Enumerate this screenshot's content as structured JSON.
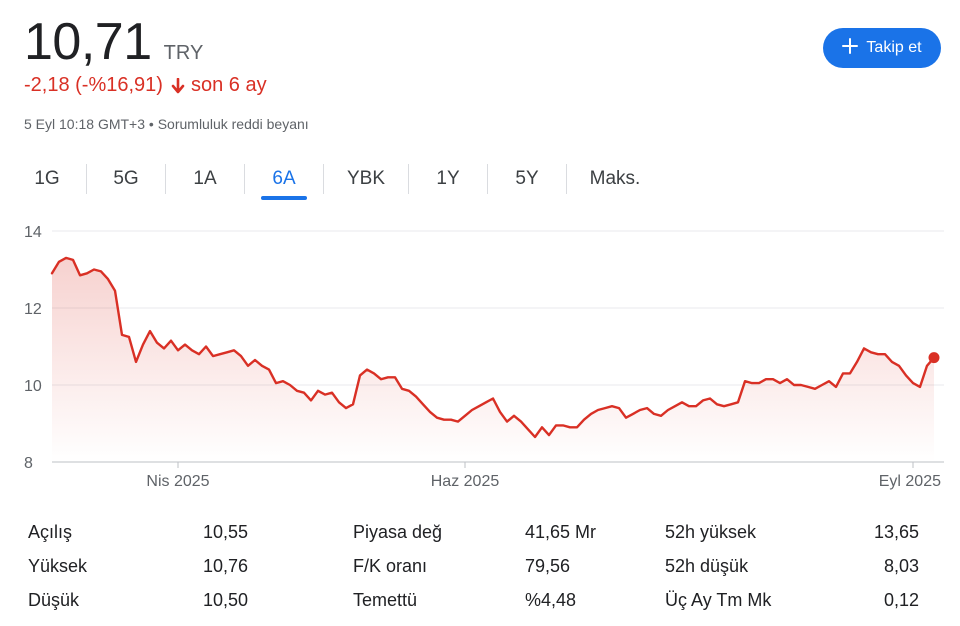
{
  "quote": {
    "price": "10,71",
    "currency": "TRY",
    "change": "-2,18 (-%16,91)",
    "change_period": "son 6 ay",
    "timestamp": "5 Eyl 10:18 GMT+3",
    "separator": "•",
    "disclaimer": "Sorumluluk reddi beyanı"
  },
  "follow_button": {
    "label": "Takip et"
  },
  "colors": {
    "down": "#d93025",
    "accent": "#1a73e8",
    "grid": "#e8eaed"
  },
  "tabs": [
    {
      "label": "1G",
      "active": false
    },
    {
      "label": "5G",
      "active": false
    },
    {
      "label": "1A",
      "active": false
    },
    {
      "label": "6A",
      "active": true
    },
    {
      "label": "YBK",
      "active": false
    },
    {
      "label": "1Y",
      "active": false
    },
    {
      "label": "5Y",
      "active": false
    },
    {
      "label": "Maks.",
      "active": false
    }
  ],
  "chart_data": {
    "type": "area",
    "ylim": [
      8,
      14
    ],
    "y_ticks": [
      "14",
      "12",
      "10",
      "8"
    ],
    "y_tick_values": [
      14,
      12,
      10,
      8
    ],
    "x_tick_labels": [
      "Nis 2025",
      "Haz 2025",
      "Eyl 2025"
    ],
    "x_tick_index": [
      18,
      59,
      123
    ],
    "grid": true,
    "series": [
      {
        "values": [
          12.9,
          13.2,
          13.3,
          13.25,
          12.85,
          12.9,
          13.0,
          12.95,
          12.75,
          12.45,
          11.3,
          11.25,
          10.6,
          11.05,
          11.4,
          11.1,
          10.95,
          11.15,
          10.9,
          11.05,
          10.9,
          10.8,
          11.0,
          10.75,
          10.8,
          10.85,
          10.9,
          10.75,
          10.5,
          10.65,
          10.5,
          10.4,
          10.05,
          10.1,
          10.0,
          9.85,
          9.8,
          9.6,
          9.85,
          9.75,
          9.8,
          9.55,
          9.4,
          9.5,
          10.25,
          10.4,
          10.3,
          10.15,
          10.2,
          10.2,
          9.9,
          9.85,
          9.7,
          9.5,
          9.3,
          9.15,
          9.1,
          9.1,
          9.05,
          9.2,
          9.35,
          9.45,
          9.55,
          9.65,
          9.3,
          9.05,
          9.2,
          9.05,
          8.85,
          8.65,
          8.9,
          8.7,
          8.95,
          8.95,
          8.9,
          8.9,
          9.1,
          9.25,
          9.35,
          9.4,
          9.45,
          9.4,
          9.15,
          9.25,
          9.35,
          9.4,
          9.25,
          9.2,
          9.35,
          9.45,
          9.55,
          9.45,
          9.45,
          9.6,
          9.65,
          9.5,
          9.45,
          9.5,
          9.55,
          10.1,
          10.05,
          10.05,
          10.15,
          10.15,
          10.05,
          10.15,
          10.0,
          10.0,
          9.95,
          9.9,
          10.0,
          10.1,
          9.95,
          10.3,
          10.3,
          10.6,
          10.95,
          10.85,
          10.8,
          10.8,
          10.6,
          10.5,
          10.25,
          10.05,
          9.95,
          10.5,
          10.71
        ]
      }
    ]
  },
  "stats": [
    [
      {
        "label": "Açılış",
        "value": "10,55"
      },
      {
        "label": "Piyasa değ",
        "value": "41,65 Mr"
      },
      {
        "label": "52h yüksek",
        "value": "13,65"
      }
    ],
    [
      {
        "label": "Yüksek",
        "value": "10,76"
      },
      {
        "label": "F/K oranı",
        "value": "79,56"
      },
      {
        "label": "52h düşük",
        "value": "8,03"
      }
    ],
    [
      {
        "label": "Düşük",
        "value": "10,50"
      },
      {
        "label": "Temettü",
        "value": "%4,48"
      },
      {
        "label": "Üç Ay Tm Mk",
        "value": "0,12"
      }
    ]
  ]
}
